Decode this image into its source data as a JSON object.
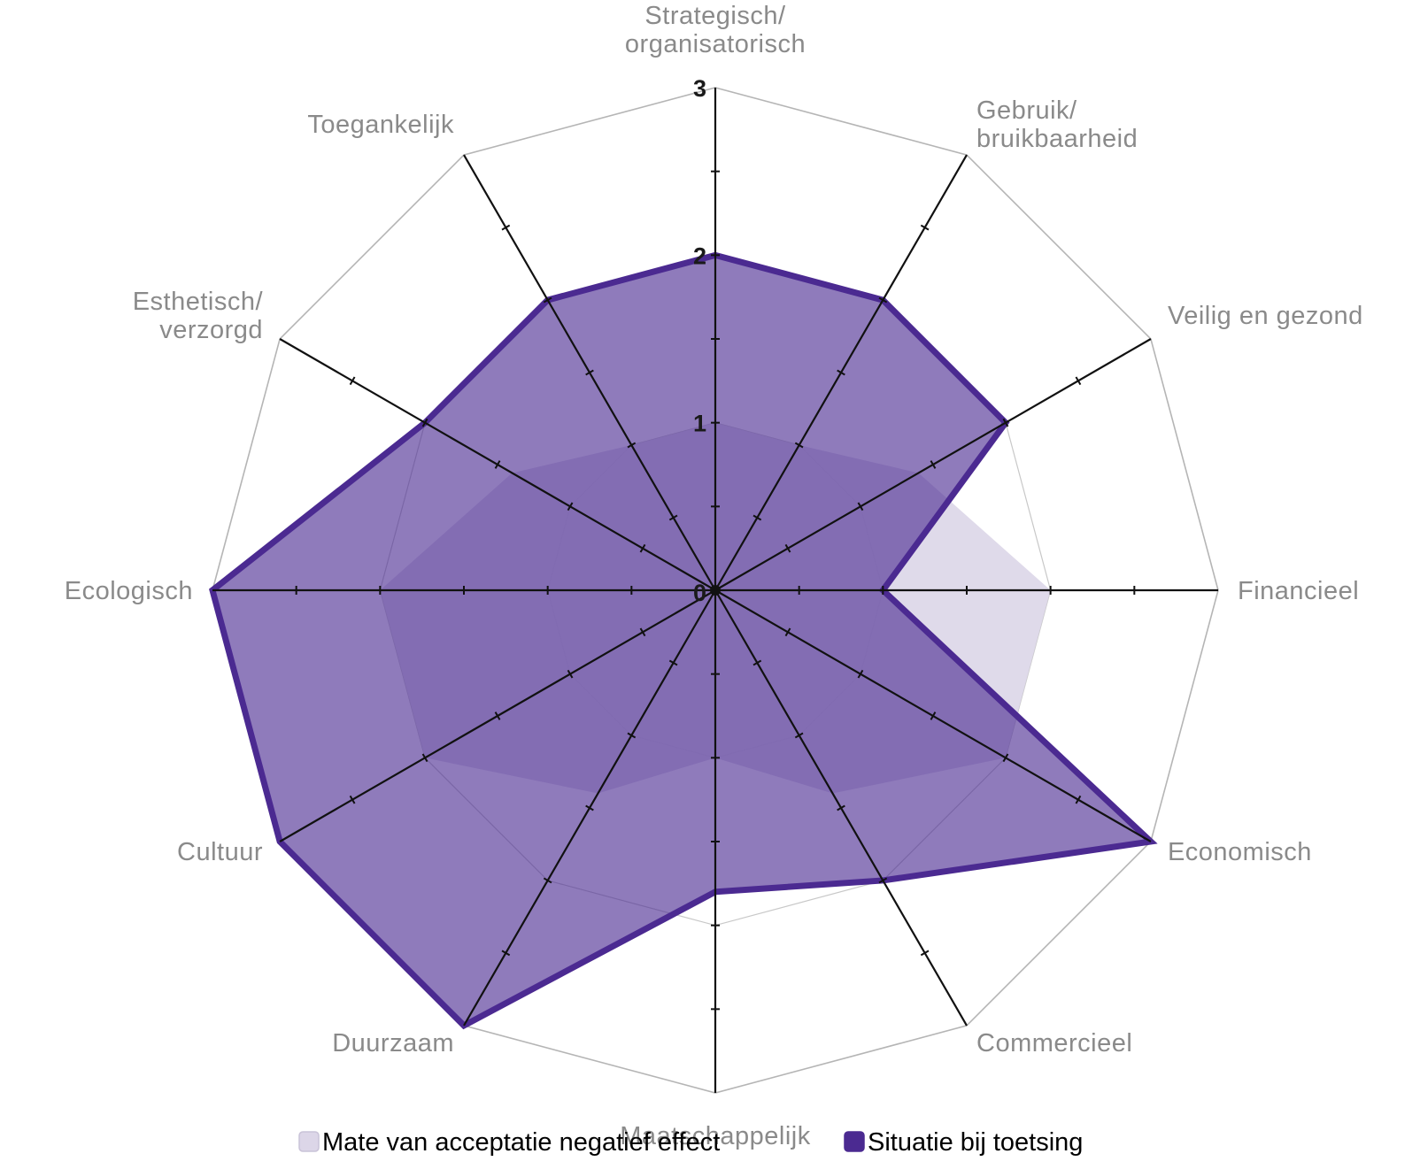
{
  "chart_data": {
    "type": "radar",
    "title": "",
    "categories": [
      "Strategisch/\norganisatorisch",
      "Gebruik/\nbruikbaarheid",
      "Veilig en gezond",
      "Financieel",
      "Economisch",
      "Commercieel",
      "Maatschappelijk",
      "Duurzaam",
      "Cultuur",
      "Ecologisch",
      "Esthetisch/\nverzorgd",
      "Toegankelijk"
    ],
    "rlim": [
      0,
      3
    ],
    "ticks": [
      0,
      1,
      2,
      3
    ],
    "tick_labels": [
      "0",
      "1",
      "2",
      "3"
    ],
    "grid": true,
    "legend": "bottom",
    "series": [
      {
        "name": "Mate van acceptatie negatief effect",
        "values": [
          1.0,
          1.0,
          1.4,
          2.0,
          2.0,
          1.4,
          1.0,
          1.4,
          2.0,
          2.0,
          1.4,
          1.0
        ],
        "color": "#dcd6e8",
        "fill_opacity": 0.9
      },
      {
        "name": "Situatie bij toetsing",
        "values": [
          2.0,
          2.0,
          2.0,
          1.0,
          3.0,
          2.0,
          1.8,
          3.0,
          3.0,
          3.0,
          2.0,
          2.0
        ],
        "color": "#4b2a91",
        "fill_opacity": 0.62
      }
    ]
  }
}
